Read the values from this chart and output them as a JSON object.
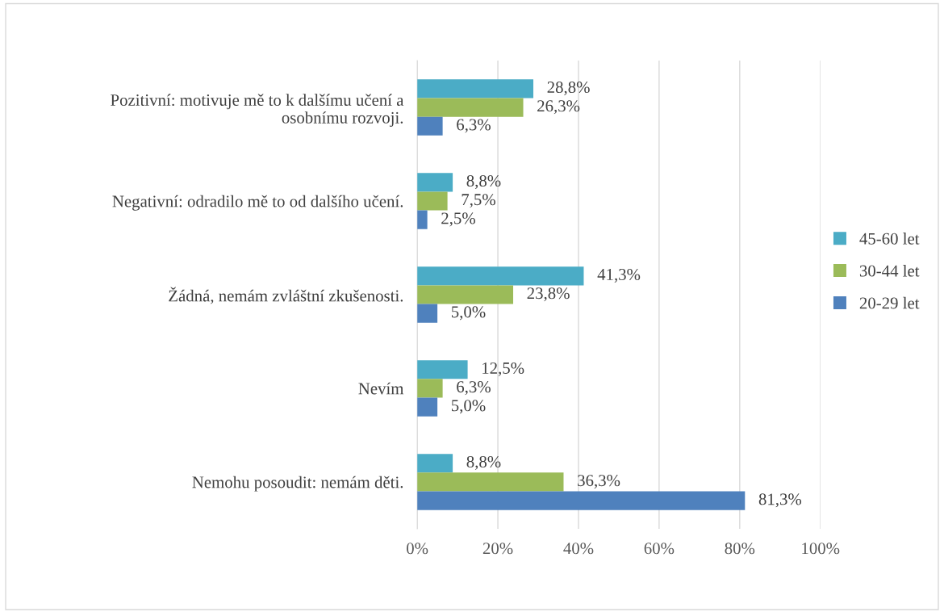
{
  "chart_data": {
    "type": "bar",
    "orientation": "horizontal",
    "categories": [
      "Pozitivní: motivuje mě to k dalšímu učení a\nosobnímu rozvoji.",
      "Negativní: odradilo mě to od dalšího učení.",
      "Žádná, nemám zvláštní zkušenosti.",
      "Nevím",
      "Nemohu posoudit: nemám děti."
    ],
    "series": [
      {
        "name": "45-60 let",
        "color": "#4bacc6",
        "values": [
          28.8,
          8.8,
          41.3,
          12.5,
          8.8
        ],
        "value_labels": [
          "28,8%",
          "8,8%",
          "41,3%",
          "12,5%",
          "8,8%"
        ]
      },
      {
        "name": "30-44 let",
        "color": "#9bbb59",
        "values": [
          26.3,
          7.5,
          23.8,
          6.3,
          36.3
        ],
        "value_labels": [
          "26,3%",
          "7,5%",
          "23,8%",
          "6,3%",
          "36,3%"
        ]
      },
      {
        "name": "20-29 let",
        "color": "#4f81bd",
        "values": [
          6.3,
          2.5,
          5.0,
          5.0,
          81.3
        ],
        "value_labels": [
          "6,3%",
          "2,5%",
          "5,0%",
          "5,0%",
          "81,3%"
        ]
      }
    ],
    "xlim": [
      0,
      100
    ],
    "xticks": [
      {
        "value": 0,
        "label": "0%"
      },
      {
        "value": 20,
        "label": "20%"
      },
      {
        "value": 40,
        "label": "40%"
      },
      {
        "value": 60,
        "label": "60%"
      },
      {
        "value": 80,
        "label": "80%"
      },
      {
        "value": 100,
        "label": "100%"
      }
    ],
    "grid": "x",
    "legend": "right"
  }
}
